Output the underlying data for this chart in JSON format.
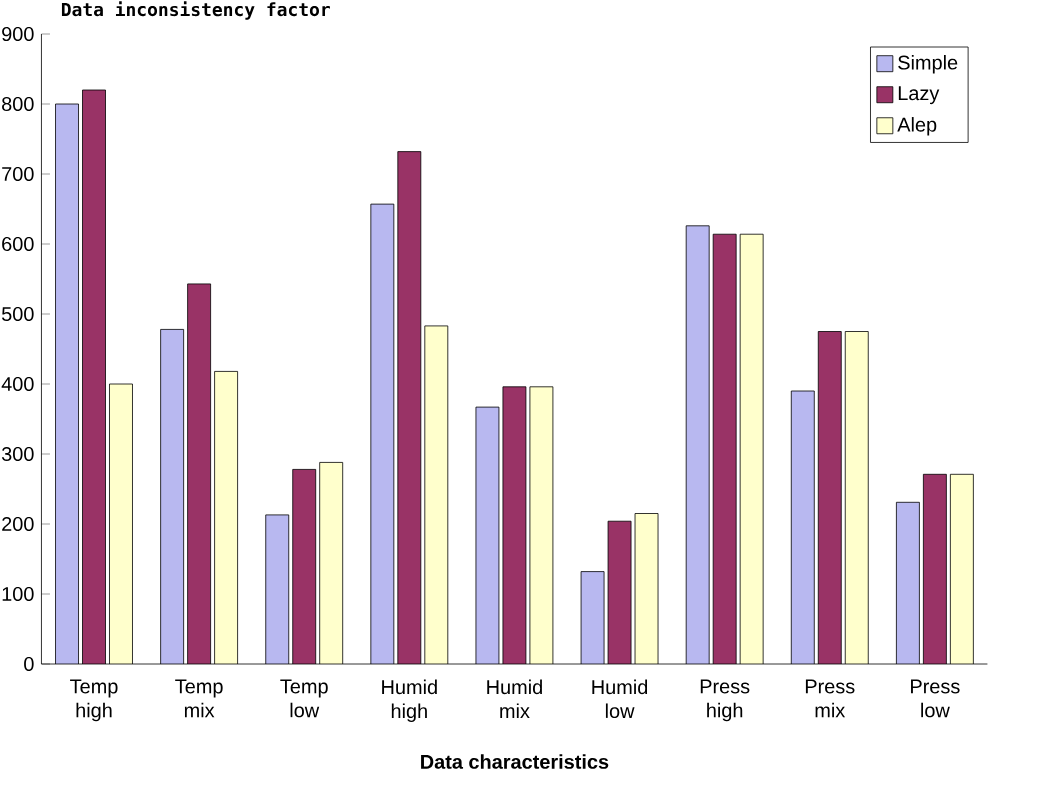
{
  "chart_data": {
    "type": "bar",
    "title": "Data inconsistency factor",
    "xlabel": "Data characteristics",
    "categories": [
      "Temp high",
      "Temp mix",
      "Temp low",
      "Humid high",
      "Humid mix",
      "Humid low",
      "Press high",
      "Press mix",
      "Press low"
    ],
    "series": [
      {
        "name": "Simple",
        "color": "#b8b8f0",
        "values": [
          800,
          478,
          213,
          657,
          367,
          132,
          626,
          390,
          231
        ]
      },
      {
        "name": "Lazy",
        "color": "#993366",
        "values": [
          820,
          543,
          278,
          732,
          396,
          204,
          614,
          475,
          271
        ]
      },
      {
        "name": "Alep",
        "color": "#ffffcc",
        "values": [
          400,
          418,
          288,
          483,
          396,
          215,
          614,
          475,
          271
        ]
      }
    ],
    "ylim": [
      0,
      900
    ],
    "yticks": [
      0,
      100,
      200,
      300,
      400,
      500,
      600,
      700,
      800,
      900
    ],
    "grid": false,
    "legend": "top right"
  }
}
